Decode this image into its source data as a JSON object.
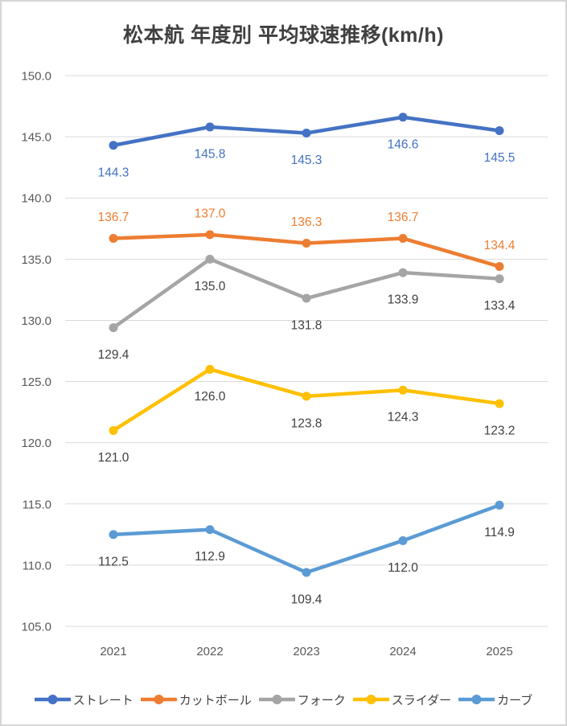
{
  "title": "松本航 年度別 平均球速推移(km/h)",
  "colors": {
    "grid": "#d9d9d9",
    "axis_text": "#595959",
    "title_text": "#404040",
    "dark_label": "#404040",
    "frame_border": "#d6d6d6",
    "background": "#ffffff"
  },
  "chart_data": {
    "type": "line",
    "title": "松本航 年度別 平均球速推移(km/h)",
    "categories": [
      "2021",
      "2022",
      "2023",
      "2024",
      "2025"
    ],
    "xlabel": "",
    "ylabel": "",
    "y_axis": {
      "min": 105.0,
      "max": 150.0,
      "step": 5.0,
      "decimals": 1,
      "grid": true
    },
    "legend_position": "bottom",
    "series": [
      {
        "id": "straight",
        "name": "ストレート",
        "color": "#4472C4",
        "label_color": "#4472C4",
        "label_position": "below",
        "values": [
          144.3,
          145.8,
          145.3,
          146.6,
          145.5
        ]
      },
      {
        "id": "cutball",
        "name": "カットボール",
        "color": "#ED7D31",
        "label_color": "#ED7D31",
        "label_position": "above",
        "values": [
          136.7,
          137.0,
          136.3,
          136.7,
          134.4
        ]
      },
      {
        "id": "fork",
        "name": "フォーク",
        "color": "#A5A5A5",
        "label_color": "#404040",
        "label_position": "below",
        "values": [
          129.4,
          135.0,
          131.8,
          133.9,
          133.4
        ]
      },
      {
        "id": "slider",
        "name": "スライダー",
        "color": "#FFC000",
        "label_color": "#404040",
        "label_position": "below",
        "values": [
          121.0,
          126.0,
          123.8,
          124.3,
          123.2
        ]
      },
      {
        "id": "curve",
        "name": "カーブ",
        "color": "#5B9BD5",
        "label_color": "#404040",
        "label_position": "below",
        "values": [
          112.5,
          112.9,
          109.4,
          112.0,
          114.9
        ]
      }
    ]
  }
}
